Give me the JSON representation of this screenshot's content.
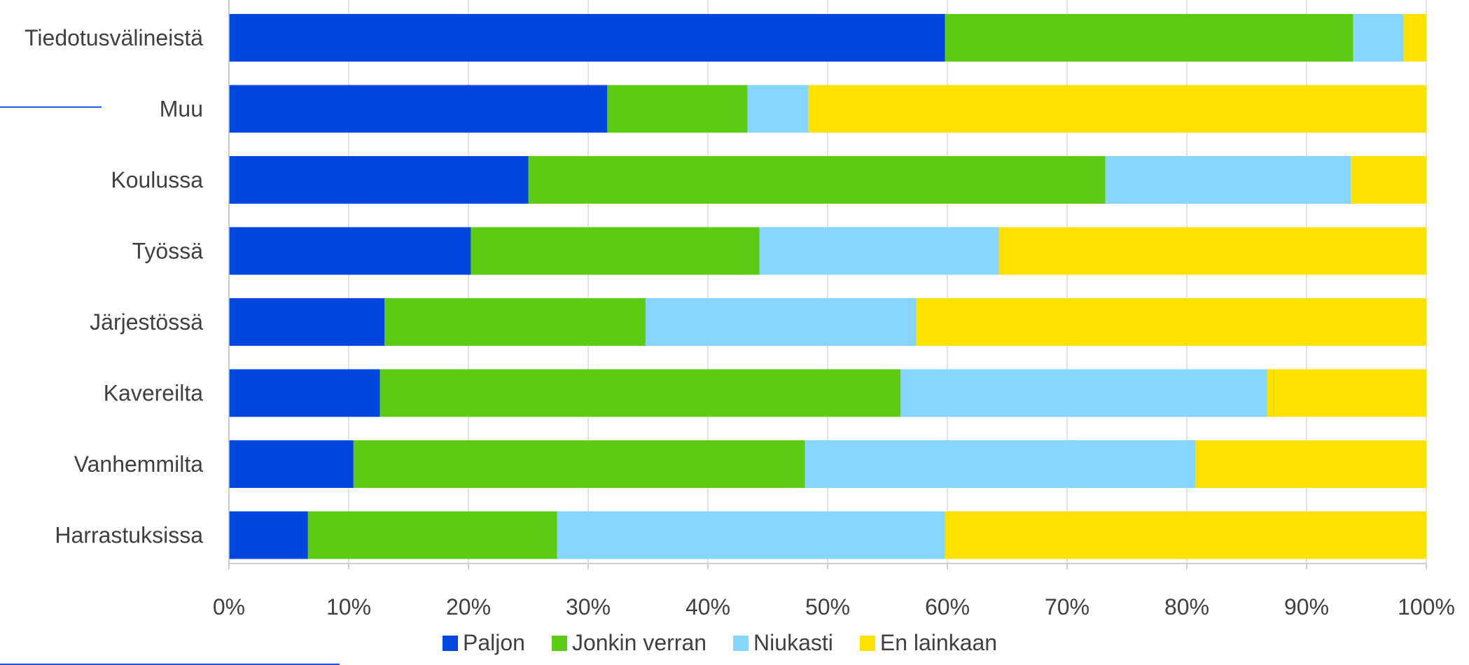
{
  "chart_data": {
    "type": "bar",
    "orientation": "horizontal",
    "stacked": "percent",
    "categories": [
      "Tiedotusvälineistä",
      "Muu",
      "Koulussa",
      "Työssä",
      "Järjestössä",
      "Kavereilta",
      "Vanhemmilta",
      "Harrastuksissa"
    ],
    "series": [
      {
        "name": "Paljon",
        "color": "#0046df",
        "values": [
          59.8,
          31.6,
          25.0,
          20.2,
          13.0,
          12.6,
          10.4,
          6.6
        ]
      },
      {
        "name": "Jonkin verran",
        "color": "#5ccb14",
        "values": [
          34.1,
          11.7,
          48.2,
          24.1,
          21.8,
          43.5,
          37.7,
          20.8
        ]
      },
      {
        "name": "Niukasti",
        "color": "#85d5fd",
        "values": [
          4.2,
          5.1,
          20.5,
          20.0,
          22.6,
          30.6,
          32.6,
          32.4
        ]
      },
      {
        "name": "En lainkaan",
        "color": "#ffe100",
        "values": [
          1.9,
          51.6,
          6.3,
          35.7,
          42.6,
          13.3,
          19.3,
          40.2
        ]
      }
    ],
    "xlim": [
      0,
      100
    ],
    "x_ticks": [
      "0%",
      "10%",
      "20%",
      "30%",
      "40%",
      "50%",
      "60%",
      "70%",
      "80%",
      "90%",
      "100%"
    ],
    "grid": true,
    "legend_position": "bottom",
    "title": "",
    "xlabel": "",
    "ylabel": ""
  }
}
